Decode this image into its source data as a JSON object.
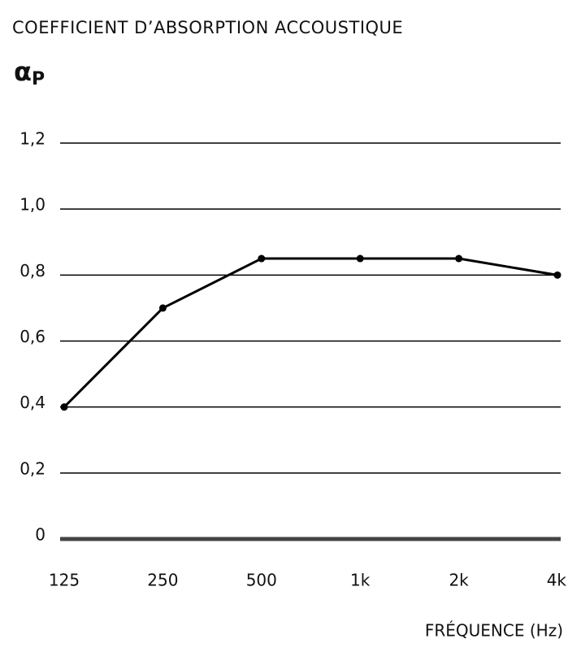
{
  "chart_data": {
    "type": "line",
    "title": "COEFFICIENT D’ABSORPTION ACCOUSTIQUE",
    "ylabel": {
      "symbol": "α",
      "subscript": "P"
    },
    "xlabel": "FRÉQUENCE (Hz)",
    "categories": [
      "125",
      "250",
      "500",
      "1k",
      "2k",
      "4k"
    ],
    "values": [
      0.4,
      0.7,
      0.85,
      0.85,
      0.85,
      0.8
    ],
    "color": "#000000",
    "ylim": [
      0,
      1.2
    ],
    "yticks": [
      0,
      {
        "value": 0.2,
        "label": "0,2"
      },
      {
        "value": 0.4,
        "label": "0,4"
      },
      {
        "value": 0.6,
        "label": "0,6"
      },
      {
        "value": 0.8,
        "label": "0,8"
      },
      {
        "value": 1.0,
        "label": "1,0"
      },
      {
        "value": 1.2,
        "label": "1,2"
      }
    ],
    "grid": true
  }
}
